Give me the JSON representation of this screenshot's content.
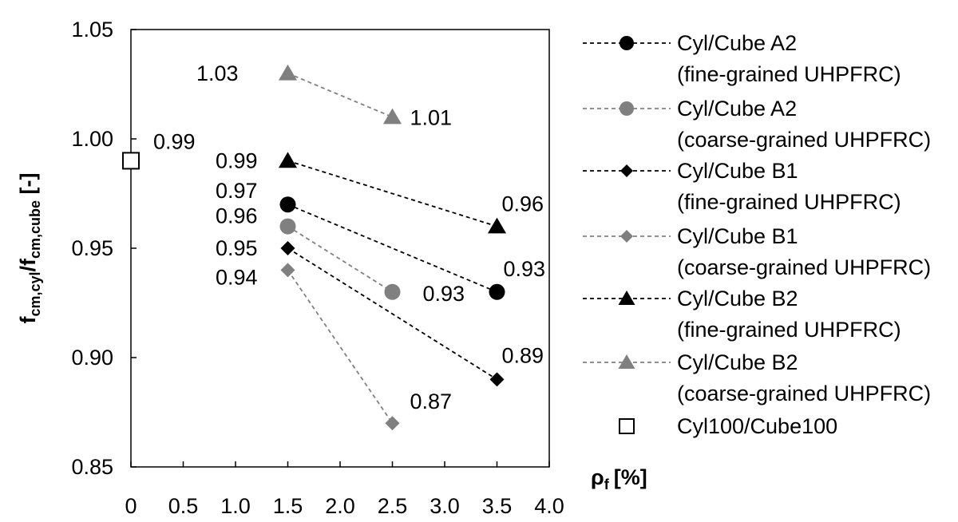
{
  "chart_data": {
    "type": "scatter",
    "xlabel": "ρf [%]",
    "xlabel_main": "ρ",
    "xlabel_sub": "f",
    "xlabel_unit": "[%]",
    "ylabel": "fcm,cyl/fcm,cube [-]",
    "ylabel_parts": {
      "f1": "f",
      "s1": "cm,cyl",
      "slash": "/f",
      "s2": "cm,cube",
      "unit": " [-]"
    },
    "xlim": [
      0,
      4.0
    ],
    "ylim": [
      0.85,
      1.05
    ],
    "x_ticks": [
      {
        "value": 0,
        "label": "0"
      },
      {
        "value": 0.5,
        "label": "0.5"
      },
      {
        "value": 1.0,
        "label": "1.0"
      },
      {
        "value": 1.5,
        "label": "1.5"
      },
      {
        "value": 2.0,
        "label": "2.0"
      },
      {
        "value": 2.5,
        "label": "2.5"
      },
      {
        "value": 3.0,
        "label": "3.0"
      },
      {
        "value": 3.5,
        "label": "3.5"
      },
      {
        "value": 4.0,
        "label": "4.0"
      }
    ],
    "y_ticks": [
      {
        "value": 0.85,
        "label": "0.85"
      },
      {
        "value": 0.9,
        "label": "0.90"
      },
      {
        "value": 0.95,
        "label": "0.95"
      },
      {
        "value": 1.0,
        "label": "1.00"
      },
      {
        "value": 1.05,
        "label": "1.05"
      }
    ],
    "grid": false,
    "legend_position": "right",
    "series": [
      {
        "name": "Cyl/Cube A2",
        "name_line2": "(fine-grained UHPFRC)",
        "marker": "circle",
        "color": "#000000",
        "dashed": true,
        "points": [
          {
            "x": 1.5,
            "y": 0.97,
            "label": "0.97"
          },
          {
            "x": 3.5,
            "y": 0.93,
            "label": "0.93"
          }
        ]
      },
      {
        "name": "Cyl/Cube A2",
        "name_line2": "(coarse-grained UHPFRC)",
        "marker": "circle",
        "color": "#808080",
        "dashed": true,
        "points": [
          {
            "x": 1.5,
            "y": 0.96,
            "label": "0.96"
          },
          {
            "x": 2.5,
            "y": 0.93,
            "label": "0.93"
          }
        ]
      },
      {
        "name": "Cyl/Cube B1",
        "name_line2": "(fine-grained UHPFRC)",
        "marker": "diamond",
        "color": "#000000",
        "dashed": true,
        "points": [
          {
            "x": 1.5,
            "y": 0.95,
            "label": "0.95"
          },
          {
            "x": 3.5,
            "y": 0.89,
            "label": "0.89"
          }
        ]
      },
      {
        "name": "Cyl/Cube B1",
        "name_line2": "(coarse-grained UHPFRC)",
        "marker": "diamond",
        "color": "#808080",
        "dashed": true,
        "points": [
          {
            "x": 1.5,
            "y": 0.94,
            "label": "0.94"
          },
          {
            "x": 2.5,
            "y": 0.87,
            "label": "0.87"
          }
        ]
      },
      {
        "name": "Cyl/Cube B2",
        "name_line2": "(fine-grained UHPFRC)",
        "marker": "triangle",
        "color": "#000000",
        "dashed": true,
        "points": [
          {
            "x": 1.5,
            "y": 0.99,
            "label": "0.99"
          },
          {
            "x": 3.5,
            "y": 0.96,
            "label": "0.96"
          }
        ]
      },
      {
        "name": "Cyl/Cube B2",
        "name_line2": "(coarse-grained UHPFRC)",
        "marker": "triangle",
        "color": "#808080",
        "dashed": true,
        "points": [
          {
            "x": 1.5,
            "y": 1.03,
            "label": "1.03"
          },
          {
            "x": 2.5,
            "y": 1.01,
            "label": "1.01"
          }
        ]
      },
      {
        "name": "Cyl100/Cube100",
        "name_line2": "",
        "marker": "square-open",
        "color": "#000000",
        "dashed": false,
        "points": [
          {
            "x": 0,
            "y": 0.99,
            "label": "0.99"
          }
        ]
      }
    ]
  }
}
